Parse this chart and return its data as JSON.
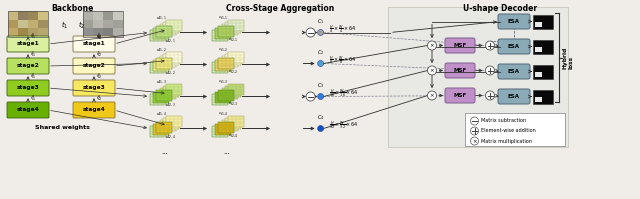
{
  "backbone_title": "Backbone",
  "csa_title": "Cross-Stage Aggregation",
  "decoder_title": "U-shape Decoder",
  "hybrid_label": "Hybrid\nloss",
  "shared_weights": "Shared weights",
  "stage_labels_green": [
    "stage1",
    "stage2",
    "stage3",
    "stage4"
  ],
  "stage_labels_yellow": [
    "stage1",
    "stage2",
    "stage3",
    "stage4"
  ],
  "esa_labels": [
    "ESA",
    "ESA",
    "ESA",
    "ESA"
  ],
  "msf_labels": [
    "MSF",
    "MSF",
    "MSF"
  ],
  "c_labels": [
    "c_1",
    "c_2",
    "c_3",
    "c_4"
  ],
  "dim_labels_row0": [
    "H",
    "W",
    "64"
  ],
  "dim_labels_row1": [
    "H",
    "W",
    "64"
  ],
  "dim_labels_row2": [
    "H",
    "W",
    "64"
  ],
  "dim_labels_row3": [
    "H",
    "W",
    "64"
  ],
  "dim_fracs_row0": [
    "4",
    "4"
  ],
  "dim_fracs_row1": [
    "8",
    "8"
  ],
  "dim_fracs_row2": [
    "16",
    "16"
  ],
  "dim_fracs_row3": [
    "32",
    "32"
  ],
  "legend_items": [
    "Matrix subtraction",
    "Element-wise addition",
    "Matrix multiplication"
  ],
  "bg_color": "#f0ede8",
  "stage_green_colors": [
    "#d8f0a0",
    "#b8e060",
    "#90cc20",
    "#68b000"
  ],
  "stage_yellow_colors": [
    "#fefce8",
    "#fef8c0",
    "#f8e860",
    "#f0c818"
  ],
  "esa_color": "#8aaab8",
  "msf_color": "#c090c8",
  "arrow_color": "#303030",
  "decoder_bg": "#e8e8e4",
  "img1_colors": [
    "#c0a868",
    "#b09858",
    "#c8b880",
    "#a08848",
    "#c8c090",
    "#908060",
    "#b0a068",
    "#c0b070",
    "#988858",
    "#b8a870",
    "#a09060",
    "#d0c080"
  ],
  "img2_colors": [
    "#909090",
    "#a0a098",
    "#b0b0a8",
    "#888888",
    "#b8b8b0",
    "#c0c0b8",
    "#808080",
    "#a8a8a0",
    "#989890",
    "#b0b0a8",
    "#a0a098",
    "#c8c8c0"
  ]
}
